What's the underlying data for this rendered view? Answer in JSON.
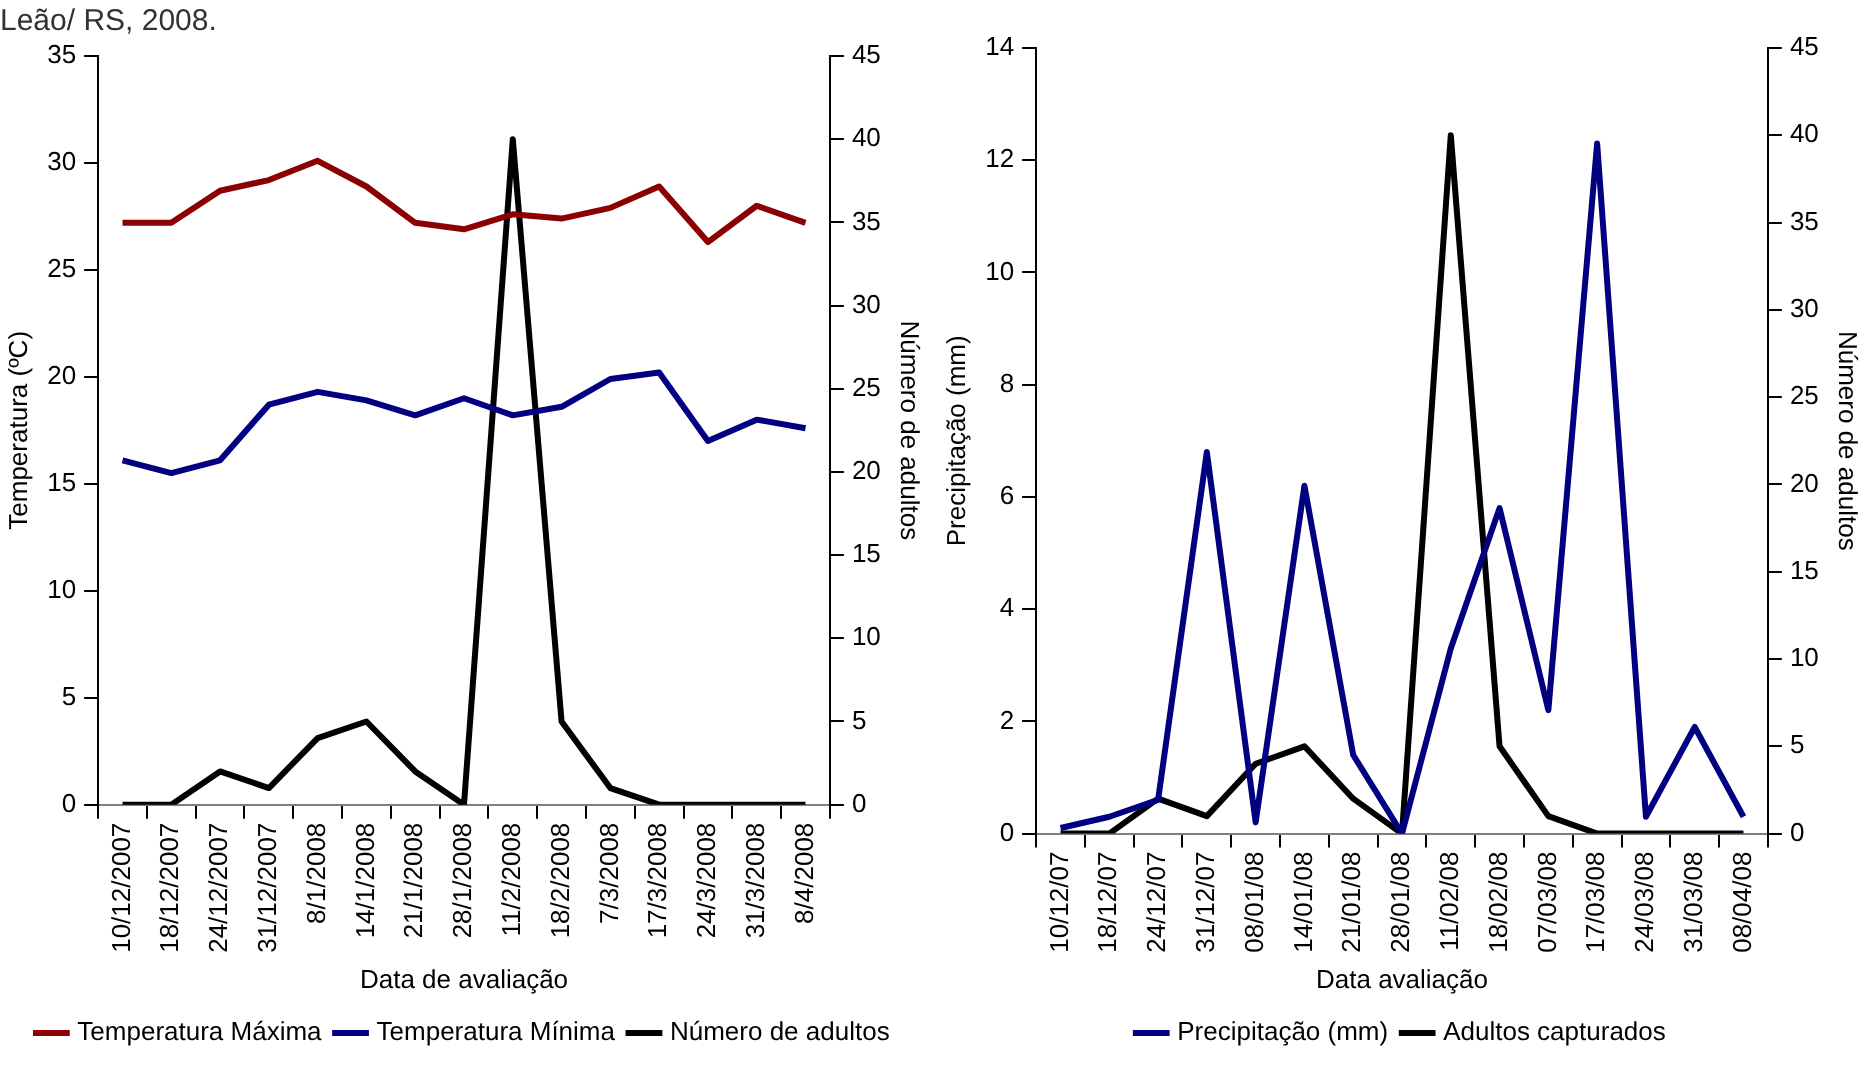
{
  "chart_data": [
    {
      "type": "line",
      "title": "Leão/ RS, 2008.",
      "xlabel": "Data de avaliação",
      "ylabel": "Temperatura (ºC)",
      "y2label": "Número de adultos",
      "categories": [
        "10/12/2007",
        "18/12/2007",
        "24/12/2007",
        "31/12/2007",
        "8/1/2008",
        "14/1/2008",
        "21/1/2008",
        "28/1/2008",
        "11/2/2008",
        "18/2/2008",
        "7/3/2008",
        "17/3/2008",
        "24/3/2008",
        "31/3/2008",
        "8/4/2008"
      ],
      "series": [
        {
          "name": "Temperatura Máxima",
          "color": "#8b0000",
          "values": [
            27.2,
            27.2,
            28.7,
            29.2,
            30.1,
            28.9,
            27.2,
            26.9,
            27.6,
            27.4,
            27.9,
            28.9,
            26.3,
            28.0,
            27.2
          ]
        },
        {
          "name": "Temperatura Mínima",
          "color": "#000080",
          "values": [
            16.1,
            15.5,
            16.1,
            18.7,
            19.3,
            18.9,
            18.2,
            19.0,
            18.2,
            18.6,
            19.9,
            20.2,
            17.0,
            18.0,
            17.6
          ]
        },
        {
          "name": "Número de adultos",
          "color": "#000000",
          "axis": "y2",
          "values": [
            0,
            0,
            2,
            1,
            4,
            5,
            2,
            0,
            40,
            5,
            1,
            0,
            0,
            0,
            0
          ]
        }
      ],
      "ylim": [
        0,
        35
      ],
      "yticks": [
        0,
        5,
        10,
        15,
        20,
        25,
        30,
        35
      ],
      "y2lim": [
        0,
        45
      ],
      "y2ticks": [
        0,
        5,
        10,
        15,
        20,
        25,
        30,
        35,
        40,
        45
      ],
      "grid": false,
      "legend": "bottom",
      "marker": "none"
    },
    {
      "type": "line",
      "xlabel": "Data avaliação",
      "ylabel": "Precipitação (mm)",
      "y2label": "Número de adultos",
      "categories": [
        "10/12/07",
        "18/12/07",
        "24/12/07",
        "31/12/07",
        "08/01/08",
        "14/01/08",
        "21/01/08",
        "28/01/08",
        "11/02/08",
        "18/02/08",
        "07/03/08",
        "17/03/08",
        "24/03/08",
        "31/03/08",
        "08/04/08"
      ],
      "series": [
        {
          "name": "Precipitação (mm)",
          "color": "#000080",
          "values": [
            0.1,
            0.3,
            0.6,
            6.8,
            0.2,
            6.2,
            1.4,
            0,
            3.3,
            5.8,
            2.2,
            12.3,
            0.3,
            1.9,
            0.3
          ]
        },
        {
          "name": "Adultos capturados",
          "color": "#000000",
          "axis": "y2",
          "values": [
            0,
            0,
            2,
            1,
            4,
            5,
            2,
            0,
            40,
            5,
            1,
            0,
            0,
            0,
            0
          ]
        }
      ],
      "ylim": [
        0,
        14
      ],
      "yticks": [
        0,
        2,
        4,
        6,
        8,
        10,
        12,
        14
      ],
      "y2lim": [
        0,
        45
      ],
      "y2ticks": [
        0,
        5,
        10,
        15,
        20,
        25,
        30,
        35,
        40,
        45
      ],
      "grid": false,
      "legend": "bottom",
      "marker": "none"
    }
  ]
}
